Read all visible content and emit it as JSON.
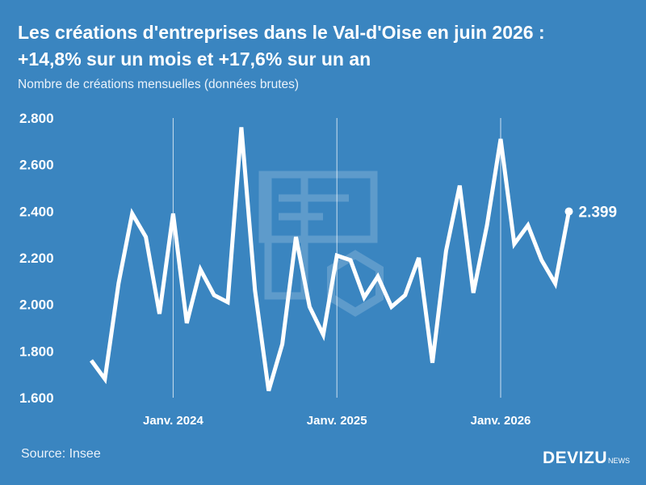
{
  "header": {
    "title_line1": "Les créations d'entreprises dans le Val-d'Oise en juin 2026 :",
    "title_line2": "+14,8% sur un mois et +17,6% sur un an",
    "subtitle": "Nombre de créations mensuelles (données brutes)"
  },
  "footer": {
    "source": "Source: Insee",
    "brand": "DEVIZU",
    "brand_suffix": "NEWS"
  },
  "chart_data": {
    "type": "line",
    "ylim": [
      1600,
      2800
    ],
    "yticks": [
      1600,
      1800,
      2000,
      2200,
      2400,
      2600,
      2800
    ],
    "ytick_labels": [
      "1.600",
      "1.800",
      "2.000",
      "2.200",
      "2.400",
      "2.600",
      "2.800"
    ],
    "xtick_labels": [
      "Janv. 2024",
      "Janv. 2025",
      "Janv. 2026"
    ],
    "xtick_index": [
      6,
      18,
      30
    ],
    "line_color": "#ffffff",
    "values": [
      1760,
      1680,
      2090,
      2390,
      2290,
      1960,
      2390,
      1920,
      2150,
      2040,
      2010,
      2760,
      2060,
      1630,
      1830,
      2290,
      1990,
      1870,
      2210,
      2190,
      2030,
      2120,
      1990,
      2040,
      2200,
      1750,
      2230,
      2510,
      2050,
      2340,
      2710,
      2260,
      2340,
      2190,
      2090,
      2399
    ],
    "last_value_label": "2.399"
  }
}
